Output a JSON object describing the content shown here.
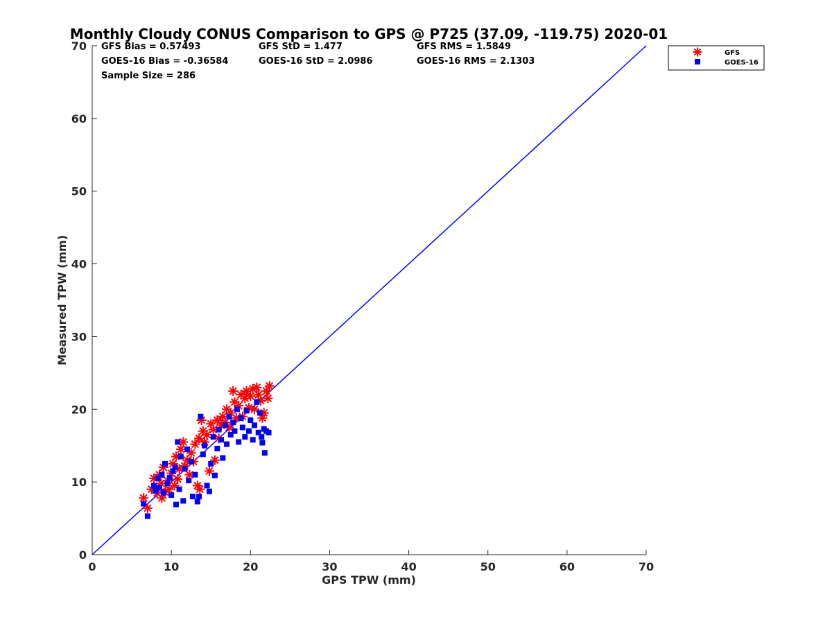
{
  "chart_data": {
    "type": "scatter",
    "title": "Monthly Cloudy CONUS Comparison to GPS @ P725 (37.09, -119.75) 2020-01",
    "xlabel": "GPS TPW (mm)",
    "ylabel": "Measured TPW (mm)",
    "xlim": [
      0,
      70
    ],
    "ylim": [
      0,
      70
    ],
    "xticks": [
      "0",
      "10",
      "20",
      "30",
      "40",
      "50",
      "60",
      "70"
    ],
    "yticks": [
      "0",
      "10",
      "20",
      "30",
      "40",
      "50",
      "60",
      "70"
    ],
    "grid": false,
    "legend_position": "top-right",
    "reference_line": {
      "name": "1:1",
      "color": "#0000ff",
      "x": [
        0,
        70
      ],
      "y": [
        0,
        70
      ]
    },
    "stats": {
      "gfs_bias": "GFS Bias = 0.57493",
      "gfs_std": "GFS StD = 1.477",
      "gfs_rms": "GFS RMS = 1.5849",
      "goes_bias": "GOES-16 Bias = -0.36584",
      "goes_std": "GOES-16 StD = 2.0986",
      "goes_rms": "GOES-16 RMS = 2.1303",
      "sample_size": "Sample Size = 286"
    },
    "series": [
      {
        "name": "GFS",
        "marker": "asterisk",
        "color": "#ff0000",
        "points": [
          [
            6.5,
            7.8
          ],
          [
            7.0,
            6.4
          ],
          [
            7.5,
            9.0
          ],
          [
            7.8,
            10.5
          ],
          [
            8.0,
            9.2
          ],
          [
            8.2,
            8.5
          ],
          [
            8.5,
            11.0
          ],
          [
            8.7,
            9.8
          ],
          [
            8.8,
            7.8
          ],
          [
            9.0,
            12.0
          ],
          [
            9.2,
            8.6
          ],
          [
            9.5,
            10.2
          ],
          [
            9.7,
            9.0
          ],
          [
            10.0,
            11.2
          ],
          [
            10.2,
            12.5
          ],
          [
            10.4,
            9.5
          ],
          [
            10.6,
            13.5
          ],
          [
            10.8,
            10.4
          ],
          [
            11.0,
            11.8
          ],
          [
            11.2,
            14.5
          ],
          [
            11.5,
            15.5
          ],
          [
            11.7,
            12.2
          ],
          [
            12.0,
            13.0
          ],
          [
            12.3,
            11.0
          ],
          [
            12.5,
            14.0
          ],
          [
            12.8,
            12.8
          ],
          [
            13.0,
            15.2
          ],
          [
            13.3,
            9.5
          ],
          [
            13.5,
            16.0
          ],
          [
            13.6,
            9.0
          ],
          [
            13.8,
            18.5
          ],
          [
            14.0,
            17.0
          ],
          [
            14.2,
            15.5
          ],
          [
            14.5,
            16.5
          ],
          [
            14.8,
            11.5
          ],
          [
            15.0,
            18.0
          ],
          [
            15.3,
            17.2
          ],
          [
            15.5,
            13.0
          ],
          [
            15.8,
            18.5
          ],
          [
            16.0,
            16.0
          ],
          [
            16.3,
            17.8
          ],
          [
            16.5,
            19.0
          ],
          [
            16.8,
            18.2
          ],
          [
            17.0,
            20.0
          ],
          [
            17.3,
            17.5
          ],
          [
            17.5,
            19.5
          ],
          [
            17.8,
            22.5
          ],
          [
            18.0,
            21.0
          ],
          [
            18.2,
            18.8
          ],
          [
            18.5,
            20.5
          ],
          [
            18.8,
            22.0
          ],
          [
            19.0,
            19.0
          ],
          [
            19.3,
            21.5
          ],
          [
            19.5,
            22.5
          ],
          [
            19.8,
            20.2
          ],
          [
            20.0,
            21.8
          ],
          [
            20.3,
            22.8
          ],
          [
            20.5,
            20.0
          ],
          [
            20.8,
            23.0
          ],
          [
            21.0,
            22.0
          ],
          [
            21.3,
            21.2
          ],
          [
            21.5,
            18.8
          ],
          [
            21.7,
            19.5
          ],
          [
            22.0,
            22.5
          ],
          [
            22.2,
            21.5
          ],
          [
            22.4,
            23.2
          ]
        ]
      },
      {
        "name": "GOES-16",
        "marker": "square",
        "color": "#0000ff",
        "points": [
          [
            6.5,
            7.0
          ],
          [
            7.0,
            5.3
          ],
          [
            7.8,
            9.5
          ],
          [
            8.0,
            8.8
          ],
          [
            8.3,
            10.5
          ],
          [
            8.5,
            9.2
          ],
          [
            8.8,
            11.0
          ],
          [
            9.0,
            8.5
          ],
          [
            9.2,
            12.5
          ],
          [
            9.5,
            9.8
          ],
          [
            9.8,
            10.6
          ],
          [
            10.0,
            8.2
          ],
          [
            10.2,
            11.5
          ],
          [
            10.5,
            12.0
          ],
          [
            10.6,
            6.9
          ],
          [
            10.8,
            15.5
          ],
          [
            11.0,
            9.0
          ],
          [
            11.2,
            13.5
          ],
          [
            11.5,
            7.4
          ],
          [
            11.7,
            11.8
          ],
          [
            12.0,
            14.5
          ],
          [
            12.2,
            10.2
          ],
          [
            12.5,
            12.8
          ],
          [
            12.7,
            8.0
          ],
          [
            13.0,
            11.0
          ],
          [
            13.3,
            7.3
          ],
          [
            13.5,
            8.0
          ],
          [
            13.7,
            19.0
          ],
          [
            14.0,
            13.8
          ],
          [
            14.2,
            15.0
          ],
          [
            14.5,
            9.5
          ],
          [
            14.8,
            8.7
          ],
          [
            15.0,
            12.5
          ],
          [
            15.3,
            16.2
          ],
          [
            15.5,
            10.9
          ],
          [
            15.8,
            14.6
          ],
          [
            16.0,
            17.2
          ],
          [
            16.3,
            15.8
          ],
          [
            16.5,
            13.3
          ],
          [
            16.8,
            17.8
          ],
          [
            17.0,
            15.2
          ],
          [
            17.3,
            19.0
          ],
          [
            17.5,
            16.5
          ],
          [
            17.8,
            18.2
          ],
          [
            18.0,
            17.0
          ],
          [
            18.3,
            20.0
          ],
          [
            18.5,
            15.5
          ],
          [
            18.8,
            18.8
          ],
          [
            19.0,
            17.5
          ],
          [
            19.3,
            16.2
          ],
          [
            19.5,
            19.8
          ],
          [
            19.8,
            17.0
          ],
          [
            20.0,
            18.5
          ],
          [
            20.3,
            15.8
          ],
          [
            20.5,
            17.8
          ],
          [
            20.8,
            21.0
          ],
          [
            21.0,
            16.8
          ],
          [
            21.2,
            19.5
          ],
          [
            21.4,
            16.2
          ],
          [
            21.5,
            15.4
          ],
          [
            21.7,
            17.3
          ],
          [
            21.8,
            14.0
          ],
          [
            22.0,
            17.0
          ],
          [
            22.3,
            16.8
          ]
        ]
      }
    ]
  }
}
